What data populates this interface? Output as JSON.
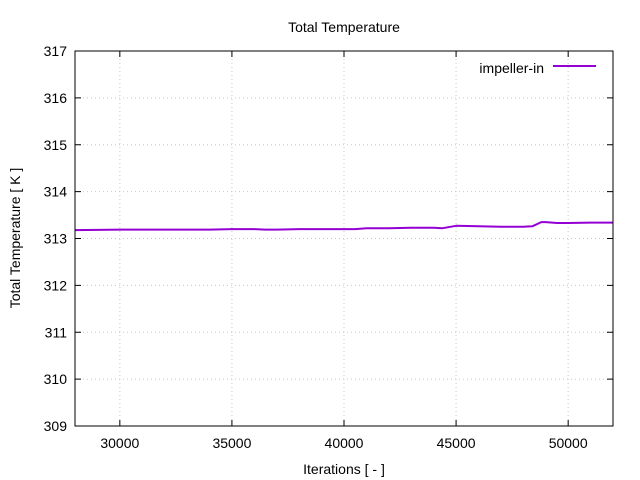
{
  "chart_data": {
    "type": "line",
    "title": "Total Temperature",
    "xlabel": "Iterations [ - ]",
    "ylabel": "Total Temperature [ K ]",
    "xlim": [
      28000,
      52000
    ],
    "ylim": [
      309,
      317
    ],
    "x_ticks": [
      30000,
      35000,
      40000,
      45000,
      50000
    ],
    "x_tick_labels": [
      "30000",
      "35000",
      "40000",
      "45000",
      "50000"
    ],
    "y_ticks": [
      309,
      310,
      311,
      312,
      313,
      314,
      315,
      316,
      317
    ],
    "y_tick_labels": [
      "309",
      "310",
      "311",
      "312",
      "313",
      "314",
      "315",
      "316",
      "317"
    ],
    "grid": true,
    "legend_position": "top-right",
    "series": [
      {
        "name": "impeller-in",
        "color": "#9400d3",
        "x": [
          28000,
          30000,
          32000,
          34000,
          35000,
          36000,
          36500,
          37000,
          38000,
          40000,
          40500,
          41000,
          42000,
          43000,
          44000,
          44400,
          45000,
          46000,
          47000,
          48000,
          48400,
          48800,
          49000,
          49500,
          50000,
          51000,
          52000
        ],
        "y": [
          313.18,
          313.19,
          313.19,
          313.19,
          313.2,
          313.2,
          313.19,
          313.19,
          313.2,
          313.2,
          313.2,
          313.22,
          313.22,
          313.23,
          313.23,
          313.22,
          313.27,
          313.26,
          313.25,
          313.25,
          313.26,
          313.35,
          313.35,
          313.33,
          313.33,
          313.34,
          313.34
        ]
      }
    ]
  }
}
